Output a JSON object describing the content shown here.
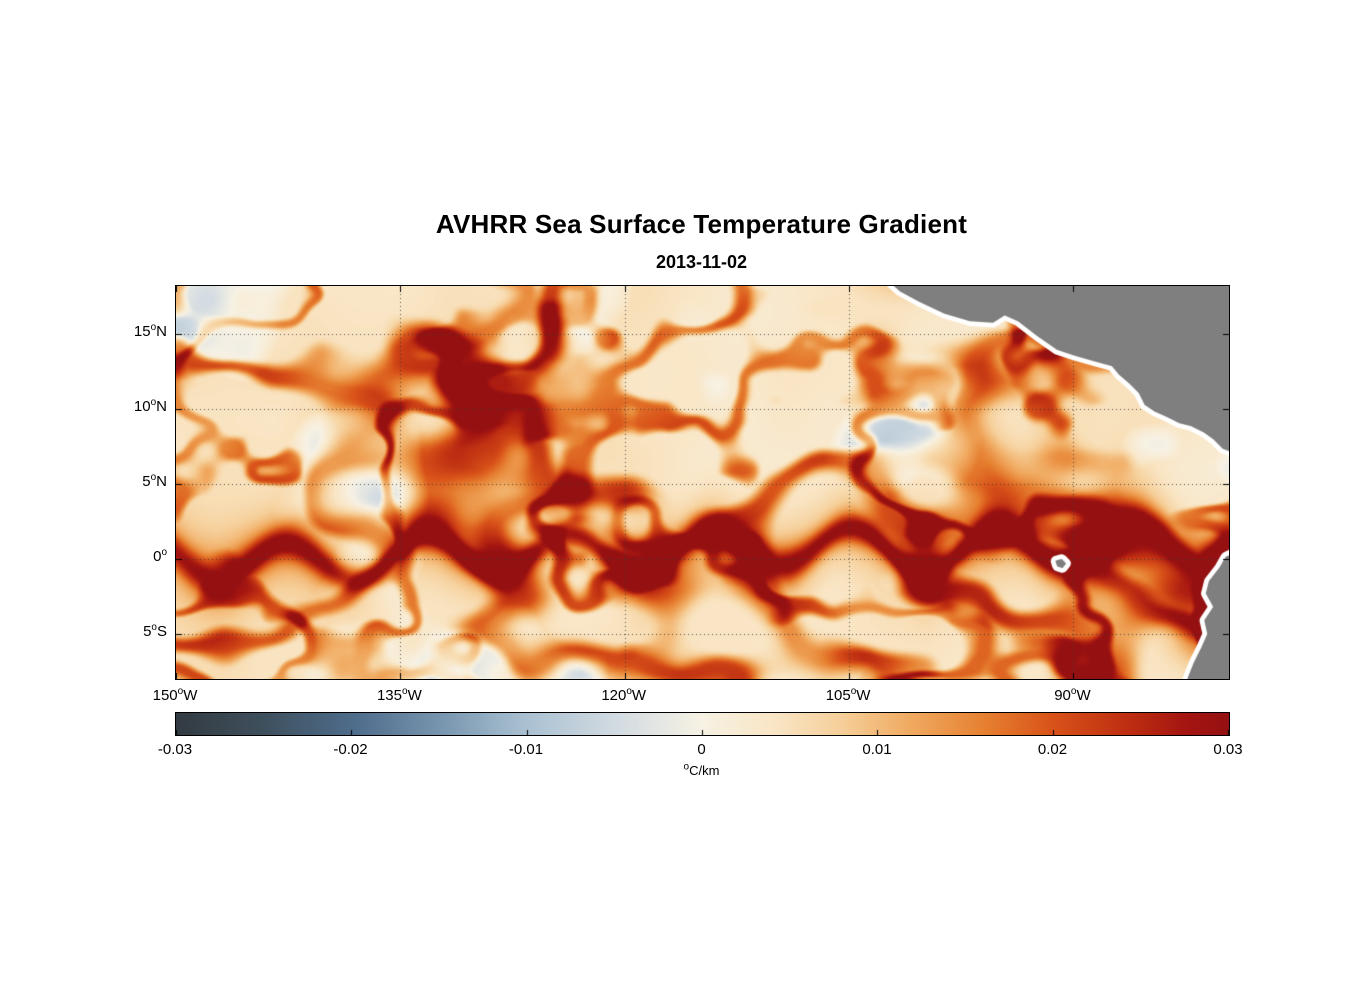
{
  "title": "AVHRR Sea Surface Temperature Gradient",
  "subtitle": "2013-11-02",
  "axes": {
    "degree_mark": "o",
    "x_ticks": [
      {
        "deg": "150",
        "hemi": "W",
        "lon": -150
      },
      {
        "deg": "135",
        "hemi": "W",
        "lon": -135
      },
      {
        "deg": "120",
        "hemi": "W",
        "lon": -120
      },
      {
        "deg": "105",
        "hemi": "W",
        "lon": -105
      },
      {
        "deg": "90",
        "hemi": "W",
        "lon": -90
      }
    ],
    "y_ticks": [
      {
        "deg": "15",
        "hemi": "N",
        "lat": 15
      },
      {
        "deg": "10",
        "hemi": "N",
        "lat": 10
      },
      {
        "deg": "5",
        "hemi": "N",
        "lat": 5
      },
      {
        "deg": "0",
        "hemi": "",
        "lat": 0
      },
      {
        "deg": "5",
        "hemi": "S",
        "lat": -5
      }
    ]
  },
  "colorbar": {
    "ticks": [
      "-0.03",
      "-0.02",
      "-0.01",
      "0",
      "0.01",
      "0.02",
      "0.03"
    ],
    "unit": "C/km"
  },
  "chart_data": {
    "type": "heatmap",
    "title": "AVHRR Sea Surface Temperature Gradient",
    "date": "2013-11-02",
    "x_range_lon": [
      -150,
      -79.6
    ],
    "y_range_lat": [
      -8.0,
      18.2
    ],
    "value_range": [
      -0.03,
      0.03
    ],
    "units": "°C/km",
    "grid": {
      "style": "dotted",
      "x_lines_lon": [
        -135,
        -120,
        -105,
        -90
      ],
      "y_lines_lat": [
        15,
        10,
        5,
        0,
        -5
      ]
    },
    "colormap_stops": [
      [
        0.0,
        "#333b42"
      ],
      [
        0.08,
        "#3e4f5c"
      ],
      [
        0.17,
        "#4f6d8c"
      ],
      [
        0.25,
        "#7795ae"
      ],
      [
        0.33,
        "#a9c0d2"
      ],
      [
        0.42,
        "#d3dce2"
      ],
      [
        0.5,
        "#f7f2e4"
      ],
      [
        0.57,
        "#f9e5c4"
      ],
      [
        0.63,
        "#f6d09b"
      ],
      [
        0.7,
        "#f0a95f"
      ],
      [
        0.77,
        "#e67f30"
      ],
      [
        0.83,
        "#d9541a"
      ],
      [
        0.9,
        "#c03012"
      ],
      [
        0.96,
        "#a41511"
      ],
      [
        1.0,
        "#951111"
      ]
    ],
    "land": {
      "color": "#7f7f7f",
      "buffer_color": "#ffffff",
      "polygons": [
        {
          "name": "central-america",
          "points": [
            [
              -102.6,
              18.8
            ],
            [
              -101.6,
              17.9
            ],
            [
              -100.3,
              17.2
            ],
            [
              -98.6,
              16.4
            ],
            [
              -96.9,
              15.9
            ],
            [
              -95.4,
              15.8
            ],
            [
              -94.6,
              16.3
            ],
            [
              -93.7,
              15.9
            ],
            [
              -92.4,
              14.9
            ],
            [
              -91.1,
              14.0
            ],
            [
              -89.9,
              13.6
            ],
            [
              -88.5,
              13.2
            ],
            [
              -87.4,
              12.9
            ],
            [
              -86.9,
              12.3
            ],
            [
              -86.2,
              11.7
            ],
            [
              -85.6,
              11.1
            ],
            [
              -85.2,
              10.3
            ],
            [
              -84.6,
              9.9
            ],
            [
              -83.7,
              9.5
            ],
            [
              -82.9,
              9.1
            ],
            [
              -82.1,
              8.9
            ],
            [
              -81.3,
              8.5
            ],
            [
              -80.6,
              8.0
            ],
            [
              -80.0,
              7.4
            ],
            [
              -79.5,
              7.2
            ],
            [
              -78.9,
              6.9
            ],
            [
              -78.5,
              6.9
            ],
            [
              -78.5,
              18.8
            ]
          ]
        },
        {
          "name": "south-america",
          "points": [
            [
              -78.8,
              0.6
            ],
            [
              -79.8,
              0.1
            ],
            [
              -80.2,
              -0.6
            ],
            [
              -80.9,
              -1.5
            ],
            [
              -81.1,
              -2.3
            ],
            [
              -80.6,
              -3.2
            ],
            [
              -81.2,
              -4.1
            ],
            [
              -81.0,
              -5.0
            ],
            [
              -81.4,
              -5.9
            ],
            [
              -81.9,
              -6.9
            ],
            [
              -82.3,
              -7.9
            ],
            [
              -82.5,
              -8.6
            ],
            [
              -78.8,
              -8.6
            ]
          ]
        },
        {
          "name": "galapagos-islands",
          "points": [
            [
              -91.15,
              -0.15
            ],
            [
              -90.8,
              -0.05
            ],
            [
              -90.55,
              -0.3
            ],
            [
              -90.75,
              -0.55
            ],
            [
              -91.05,
              -0.45
            ]
          ]
        }
      ]
    },
    "features": [
      "Strong positive SST gradient front (orange/red, up to ~0.03 C/km) meandering along the equator from 150W to the South American coast",
      "Tropical-instability-wave cusps and curved filament structures north and south of the equatorial front",
      "Most intense (dark red) gradients near the Ecuador/Peru coast around 80-86W south of the equator",
      "Background ocean is weak positive gradient (cream) with scattered pale weakly negative patches",
      "Gray land mask with white no-data coastal buffer: Central America upper right, South America lower right, small Galapagos mark near 91W 0.4S"
    ],
    "synthesis": {
      "background_level": 0.0045,
      "background_variation": 0.004,
      "negative_patch_threshold": 0.6,
      "negative_patch_amp": 0.055,
      "filaments": [
        {
          "freq_lon": 0.075,
          "freq_lat": 0.105,
          "seed": 41,
          "threshold": 0.8,
          "amp_base": 0.009,
          "amp_var": 0.013,
          "iseed": 43
        },
        {
          "freq_lon": 0.13,
          "freq_lat": 0.17,
          "seed": 53,
          "threshold": 0.84,
          "amp_base": 0.008,
          "amp_var": 0.011,
          "iseed": 57
        }
      ],
      "equator_front": {
        "lat_center": 0.5,
        "meander_amp_deg": 1.3,
        "meander_wavelength_deg": 9.5,
        "width_deg": 0.9,
        "amp": 0.021,
        "east_boost": 0.35
      },
      "coastal_blobs": [
        {
          "lon": -82.5,
          "lat": -2.2,
          "slon": 3.2,
          "slat": 2.0,
          "amp": 0.02
        },
        {
          "lon": -81.0,
          "lat": -5.3,
          "slon": 2.2,
          "slat": 1.8,
          "amp": 0.014
        },
        {
          "lon": -86.0,
          "lat": 0.3,
          "slon": 3.0,
          "slat": 1.1,
          "amp": 0.01
        }
      ]
    }
  }
}
